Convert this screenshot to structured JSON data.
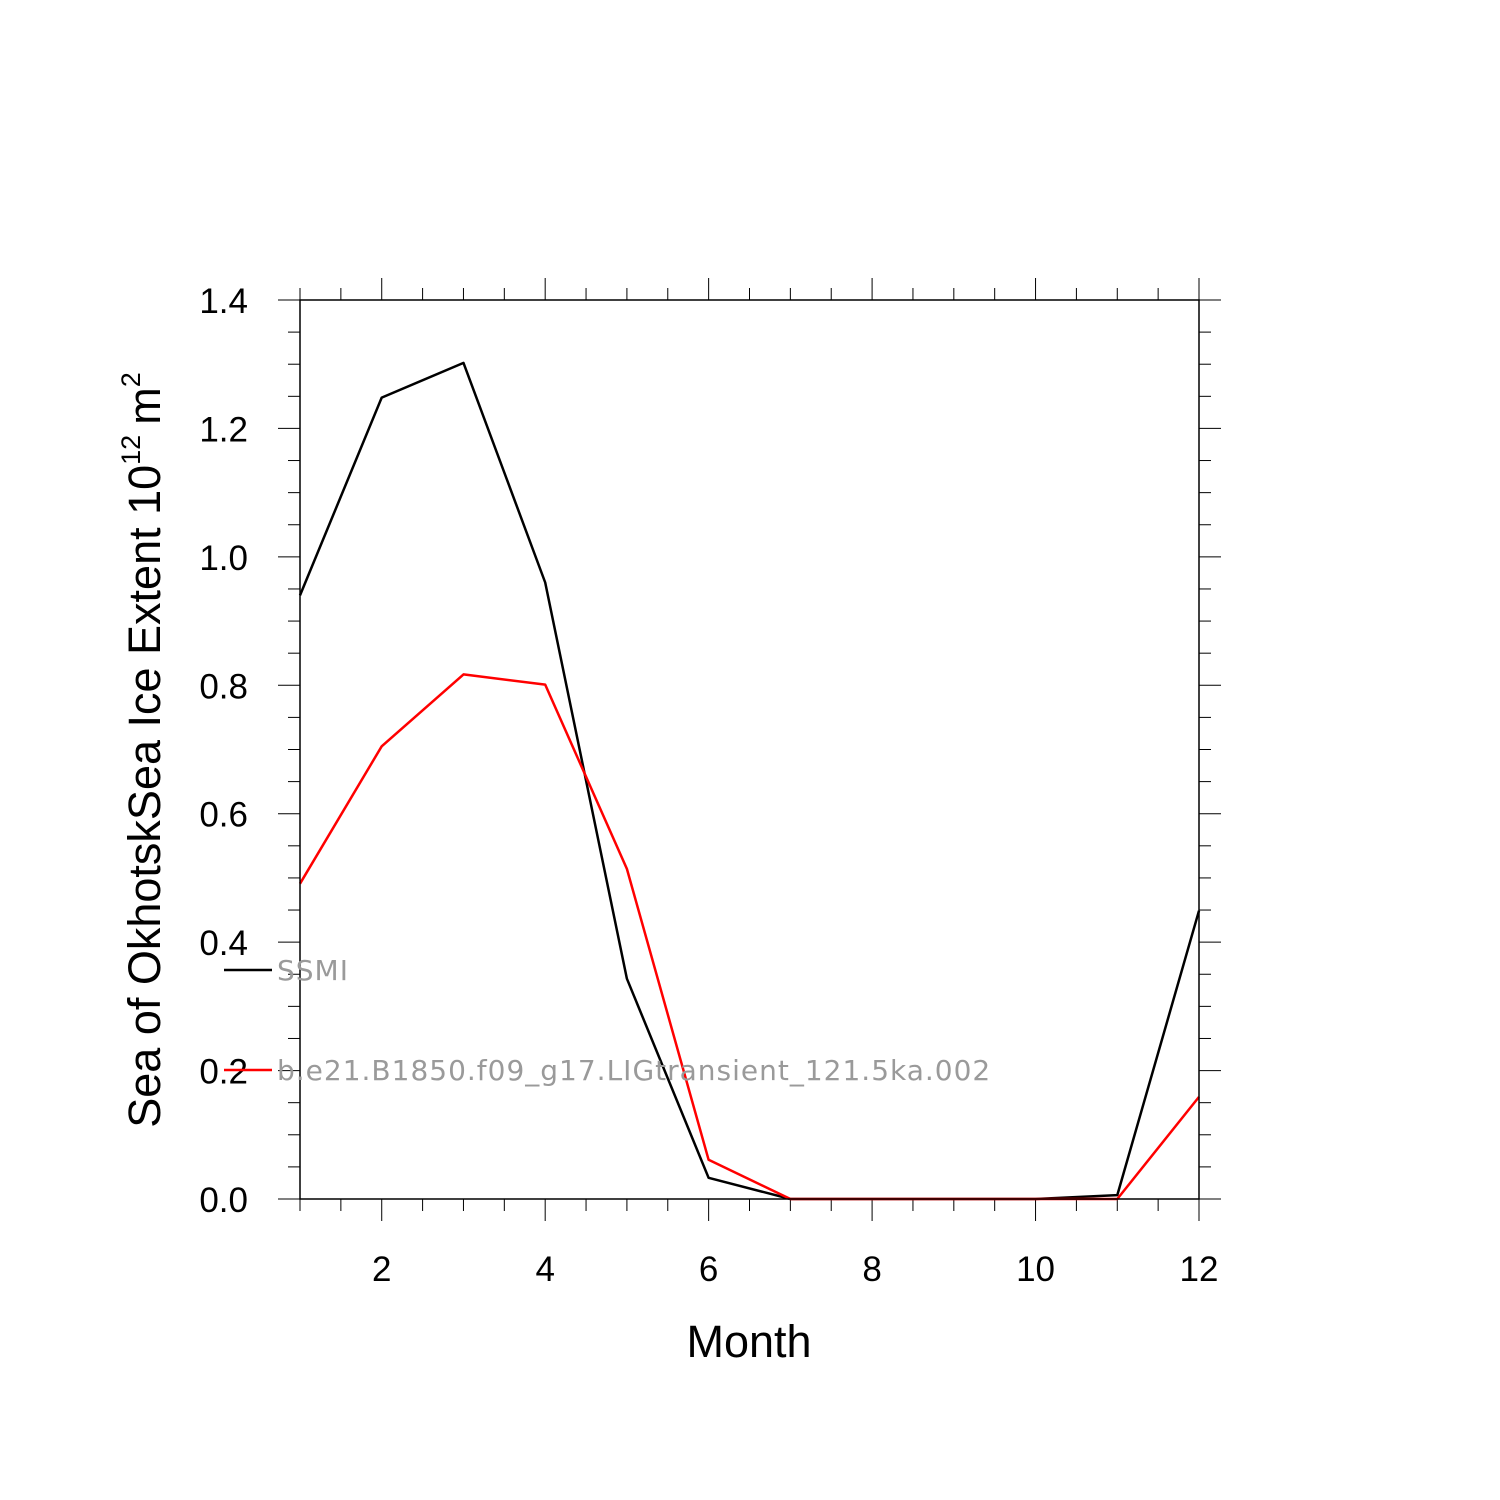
{
  "chart_data": {
    "type": "line",
    "xlabel": "Month",
    "ylabel": "Sea of OkhotskSea Ice Extent 10",
    "ylabel_superscript": "12",
    "ylabel_unit": "m",
    "ylabel_unit_superscript": "2",
    "xlim": [
      1,
      12
    ],
    "ylim": [
      0,
      1.4
    ],
    "x_ticks": [
      2,
      4,
      6,
      8,
      10,
      12
    ],
    "x_tick_labels": [
      "2",
      "4",
      "6",
      "8",
      "10",
      "12"
    ],
    "y_ticks": [
      0,
      0.2,
      0.4,
      0.6,
      0.8,
      1.0,
      1.2,
      1.4
    ],
    "y_tick_labels": [
      "0.0",
      "0.2",
      "0.4",
      "0.6",
      "0.8",
      "1.0",
      "1.2",
      "1.4"
    ],
    "legend_placement": "left-inside",
    "x": [
      1,
      2,
      3,
      4,
      5,
      6,
      7,
      8,
      9,
      10,
      11,
      12
    ],
    "series": [
      {
        "name": "SSMI",
        "color": "#000000",
        "values": [
          0.94,
          1.248,
          1.302,
          0.96,
          0.343,
          0.033,
          0.0,
          0.0,
          0.0,
          0.0,
          0.006,
          0.449
        ]
      },
      {
        "name": "b.e21.B1850.f09_g17.LIGtransient_121.5ka.002",
        "color": "#ff0000",
        "values": [
          0.491,
          0.705,
          0.817,
          0.801,
          0.514,
          0.061,
          0.0,
          0.0,
          0.0,
          0.0,
          0.0,
          0.159
        ]
      }
    ]
  }
}
